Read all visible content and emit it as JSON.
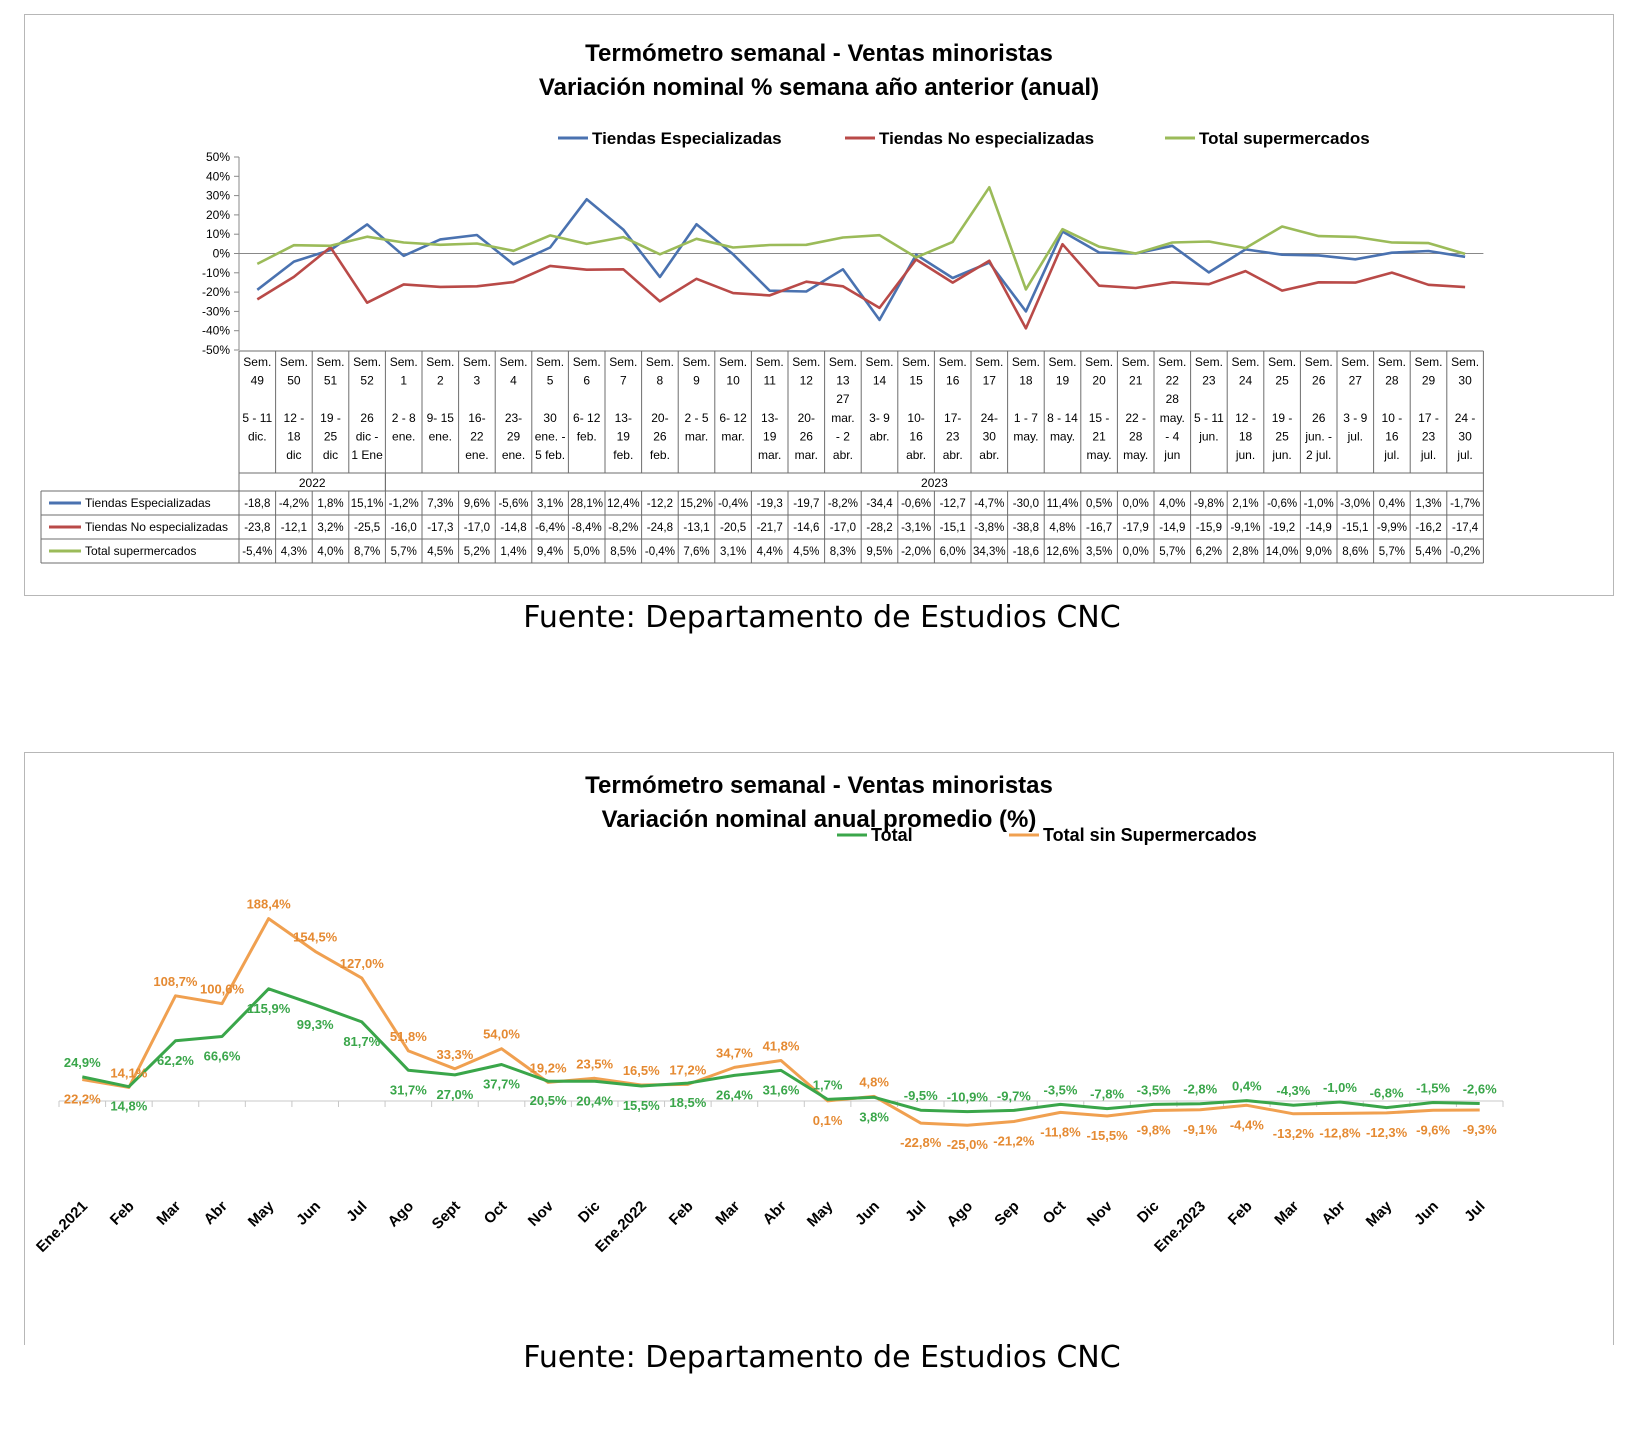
{
  "charts": [
    {
      "title_line1": "Termómetro semanal - Ventas minoristas",
      "title_line2": "Variación nominal % semana año anterior (anual)",
      "source": "Fuente: Departamento de Estudios CNC"
    },
    {
      "title_line1": "Termómetro semanal - Ventas minoristas",
      "title_line2": "Variación nominal anual promedio (%)",
      "source": "Fuente: Departamento de Estudios CNC"
    }
  ],
  "chart_data": [
    {
      "type": "line",
      "title": "Termómetro semanal - Ventas minoristas / Variación nominal % semana año anterior (anual)",
      "ylim": [
        -50,
        50
      ],
      "y_ticks": [
        "50%",
        "40%",
        "30%",
        "20%",
        "10%",
        "0%",
        "-10%",
        "-20%",
        "-30%",
        "-40%",
        "-50%"
      ],
      "grid": false,
      "legend_position": "top",
      "weeks": [
        [
          "Sem.",
          "49",
          "",
          "5 - 11",
          "dic."
        ],
        [
          "Sem.",
          "50",
          "",
          "12 -",
          "18",
          "dic"
        ],
        [
          "Sem.",
          "51",
          "",
          "19 -",
          "25",
          "dic"
        ],
        [
          "Sem.",
          "52",
          "",
          "26",
          "dic -",
          "1 Ene"
        ],
        [
          "Sem.",
          "1",
          "",
          "2 - 8",
          "ene."
        ],
        [
          "Sem.",
          "2",
          "",
          "9- 15",
          "ene."
        ],
        [
          "Sem.",
          "3",
          "",
          "16-",
          "22",
          "ene."
        ],
        [
          "Sem.",
          "4",
          "",
          "23-",
          "29",
          "ene."
        ],
        [
          "Sem.",
          "5",
          "",
          "30",
          "ene. -",
          "5 feb."
        ],
        [
          "Sem.",
          "6",
          "",
          "6- 12",
          "feb."
        ],
        [
          "Sem.",
          "7",
          "",
          "13-",
          "19",
          "feb."
        ],
        [
          "Sem.",
          "8",
          "",
          "20-",
          "26",
          "feb."
        ],
        [
          "Sem.",
          "9",
          "",
          "2 - 5",
          "mar."
        ],
        [
          "Sem.",
          "10",
          "",
          "6- 12",
          "mar."
        ],
        [
          "Sem.",
          "11",
          "",
          "13-",
          "19",
          "mar."
        ],
        [
          "Sem.",
          "12",
          "",
          "20-",
          "26",
          "mar."
        ],
        [
          "Sem.",
          "13",
          "27",
          "mar.",
          "- 2",
          "abr."
        ],
        [
          "Sem.",
          "14",
          "",
          "3- 9",
          "abr."
        ],
        [
          "Sem.",
          "15",
          "",
          "10-",
          "16",
          "abr."
        ],
        [
          "Sem.",
          "16",
          "",
          "17-",
          "23",
          "abr."
        ],
        [
          "Sem.",
          "17",
          "",
          "24-",
          "30",
          "abr."
        ],
        [
          "Sem.",
          "18",
          "",
          "1 - 7",
          "may."
        ],
        [
          "Sem.",
          "19",
          "",
          "8 - 14",
          "may."
        ],
        [
          "Sem.",
          "20",
          "",
          "15 -",
          "21",
          "may."
        ],
        [
          "Sem.",
          "21",
          "",
          "22 -",
          "28",
          "may."
        ],
        [
          "Sem.",
          "22",
          "28",
          "may.",
          "- 4",
          "jun"
        ],
        [
          "Sem.",
          "23",
          "",
          "5 - 11",
          "jun."
        ],
        [
          "Sem.",
          "24",
          "",
          "12 -",
          "18",
          "jun."
        ],
        [
          "Sem.",
          "25",
          "",
          "19 -",
          "25",
          "jun."
        ],
        [
          "Sem.",
          "26",
          "",
          "26",
          "jun. -",
          "2 jul."
        ],
        [
          "Sem.",
          "27",
          "",
          "3 - 9",
          "jul."
        ],
        [
          "Sem.",
          "28",
          "",
          "10 -",
          "16",
          "jul."
        ],
        [
          "Sem.",
          "29",
          "",
          "17 -",
          "23",
          "jul."
        ],
        [
          "Sem.",
          "30",
          "",
          "24 -",
          "30",
          "jul."
        ]
      ],
      "years": [
        {
          "label": "2022",
          "from": 0,
          "to": 3
        },
        {
          "label": "2023",
          "from": 4,
          "to": 33
        }
      ],
      "series": [
        {
          "name": "Tiendas Especializadas",
          "color": "#4a72b0",
          "values": [
            -18.8,
            -4.2,
            1.8,
            15.1,
            -1.2,
            7.3,
            9.6,
            -5.6,
            3.1,
            28.1,
            12.4,
            -12.2,
            15.2,
            -0.4,
            -19.3,
            -19.7,
            -8.2,
            -34.4,
            -0.6,
            -12.7,
            -4.7,
            -30.0,
            11.4,
            0.5,
            0.0,
            4.0,
            -9.8,
            2.1,
            -0.6,
            -1.0,
            -3.0,
            0.4,
            1.3,
            -1.7
          ],
          "labels": [
            "-18,8",
            "-4,2%",
            "1,8%",
            "15,1%",
            "-1,2%",
            "7,3%",
            "9,6%",
            "-5,6%",
            "3,1%",
            "28,1%",
            "12,4%",
            "-12,2",
            "15,2%",
            "-0,4%",
            "-19,3",
            "-19,7",
            "-8,2%",
            "-34,4",
            "-0,6%",
            "-12,7",
            "-4,7%",
            "-30,0",
            "11,4%",
            "0,5%",
            "0,0%",
            "4,0%",
            "-9,8%",
            "2,1%",
            "-0,6%",
            "-1,0%",
            "-3,0%",
            "0,4%",
            "1,3%",
            "-1,7%"
          ]
        },
        {
          "name": "Tiendas No especializadas",
          "color": "#b94a48",
          "values": [
            -23.8,
            -12.1,
            3.2,
            -25.5,
            -16.0,
            -17.3,
            -17.0,
            -14.8,
            -6.4,
            -8.4,
            -8.2,
            -24.8,
            -13.1,
            -20.5,
            -21.7,
            -14.6,
            -17.0,
            -28.2,
            -3.1,
            -15.1,
            -3.8,
            -38.8,
            4.8,
            -16.7,
            -17.9,
            -14.9,
            -15.9,
            -9.1,
            -19.2,
            -14.9,
            -15.1,
            -9.9,
            -16.2,
            -17.4
          ],
          "labels": [
            "-23,8",
            "-12,1",
            "3,2%",
            "-25,5",
            "-16,0",
            "-17,3",
            "-17,0",
            "-14,8",
            "-6,4%",
            "-8,4%",
            "-8,2%",
            "-24,8",
            "-13,1",
            "-20,5",
            "-21,7",
            "-14,6",
            "-17,0",
            "-28,2",
            "-3,1%",
            "-15,1",
            "-3,8%",
            "-38,8",
            "4,8%",
            "-16,7",
            "-17,9",
            "-14,9",
            "-15,9",
            "-9,1%",
            "-19,2",
            "-14,9",
            "-15,1",
            "-9,9%",
            "-16,2",
            "-17,4"
          ]
        },
        {
          "name": "Total supermercados",
          "color": "#9bbb59",
          "values": [
            -5.4,
            4.3,
            4.0,
            8.7,
            5.7,
            4.5,
            5.2,
            1.4,
            9.4,
            5.0,
            8.5,
            -0.4,
            7.6,
            3.1,
            4.4,
            4.5,
            8.3,
            9.5,
            -2.0,
            6.0,
            34.3,
            -18.6,
            12.6,
            3.5,
            0.0,
            5.7,
            6.2,
            2.8,
            14.0,
            9.0,
            8.6,
            5.7,
            5.4,
            -0.2
          ],
          "labels": [
            "-5,4%",
            "4,3%",
            "4,0%",
            "8,7%",
            "5,7%",
            "4,5%",
            "5,2%",
            "1,4%",
            "9,4%",
            "5,0%",
            "8,5%",
            "-0,4%",
            "7,6%",
            "3,1%",
            "4,4%",
            "4,5%",
            "8,3%",
            "9,5%",
            "-2,0%",
            "6,0%",
            "34,3%",
            "-18,6",
            "12,6%",
            "3,5%",
            "0,0%",
            "5,7%",
            "6,2%",
            "2,8%",
            "14,0%",
            "9,0%",
            "8,6%",
            "5,7%",
            "5,4%",
            "-0,2%"
          ]
        }
      ]
    },
    {
      "type": "line",
      "title": "Termómetro semanal - Ventas minoristas / Variación nominal anual promedio (%)",
      "categories": [
        "Ene.2021",
        "Feb",
        "Mar",
        "Abr",
        "May",
        "Jun",
        "Jul",
        "Ago",
        "Sept",
        "Oct",
        "Nov",
        "Dic",
        "Ene.2022",
        "Feb",
        "Mar",
        "Abr",
        "May",
        "Jun",
        "Jul",
        "Ago",
        "Sep",
        "Oct",
        "Nov",
        "Dic",
        "Ene.2023",
        "Feb",
        "Mar",
        "Abr",
        "May",
        "Jun",
        "Jul"
      ],
      "ylim": [
        -60,
        200
      ],
      "grid": false,
      "legend_position": "top-right",
      "series": [
        {
          "name": "Total",
          "color": "#3aa64a",
          "values": [
            24.9,
            14.8,
            62.2,
            66.6,
            115.9,
            99.3,
            81.7,
            31.7,
            27.0,
            37.7,
            20.5,
            20.4,
            15.5,
            18.5,
            26.4,
            31.6,
            1.7,
            3.8,
            -9.5,
            -10.9,
            -9.7,
            -3.5,
            -7.8,
            -3.5,
            -2.8,
            0.4,
            -4.3,
            -1.0,
            -6.8,
            -1.5,
            -2.6
          ],
          "labels": [
            "24,9%",
            "14,8%",
            "62,2%",
            "66,6%",
            "115,9%",
            "99,3%",
            "81,7%",
            "31,7%",
            "27,0%",
            "37,7%",
            "20,5%",
            "20,4%",
            "15,5%",
            "18,5%",
            "26,4%",
            "31,6%",
            "1,7%",
            "3,8%",
            "-9,5%",
            "-10,9%",
            "-9,7%",
            "-3,5%",
            "-7,8%",
            "-3,5%",
            "-2,8%",
            "0,4%",
            "-4,3%",
            "-1,0%",
            "-6,8%",
            "-1,5%",
            "-2,6%"
          ]
        },
        {
          "name": "Total sin Supermercados",
          "color": "#f0a050",
          "values": [
            22.2,
            14.1,
            108.7,
            100.6,
            188.4,
            154.5,
            127.0,
            51.8,
            33.3,
            54.0,
            19.2,
            23.5,
            16.5,
            17.2,
            34.7,
            41.8,
            0.1,
            4.8,
            -22.8,
            -25.0,
            -21.2,
            -11.8,
            -15.5,
            -9.8,
            -9.1,
            -4.4,
            -13.2,
            -12.8,
            -12.3,
            -9.6,
            -9.3
          ],
          "labels": [
            "22,2%",
            "14,1%",
            "108,7%",
            "100,6%",
            "188,4%",
            "154,5%",
            "127,0%",
            "51,8%",
            "33,3%",
            "54,0%",
            "19,2%",
            "23,5%",
            "16,5%",
            "17,2%",
            "34,7%",
            "41,8%",
            "0,1%",
            "4,8%",
            "-22,8%",
            "-25,0%",
            "-21,2%",
            "-11,8%",
            "-15,5%",
            "-9,8%",
            "-9,1%",
            "-4,4%",
            "-13,2%",
            "-12,8%",
            "-12,3%",
            "-9,6%",
            "-9,3%"
          ]
        }
      ]
    }
  ]
}
